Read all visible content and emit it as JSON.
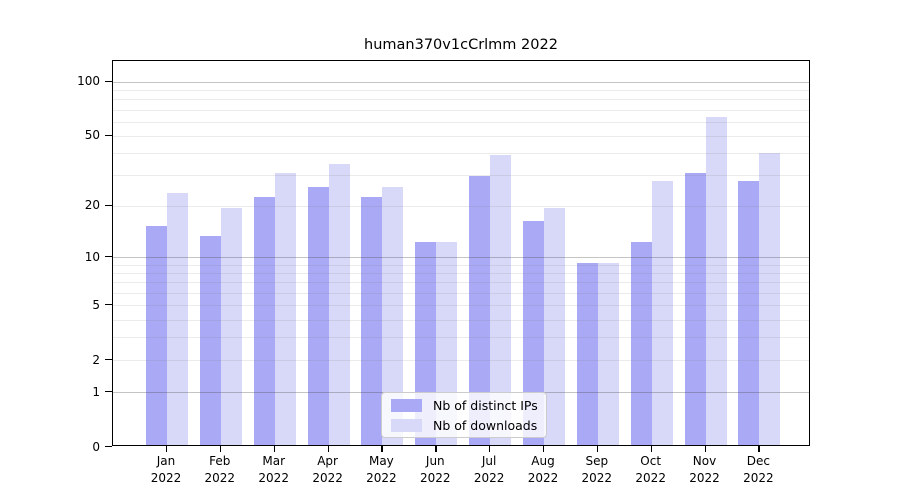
{
  "chart_data": {
    "type": "bar",
    "title": "human370v1cCrlmm 2022",
    "categories": [
      "Jan",
      "Feb",
      "Mar",
      "Apr",
      "May",
      "Jun",
      "Jul",
      "Aug",
      "Sep",
      "Oct",
      "Nov",
      "Dec"
    ],
    "x_year_label": "2022",
    "series": [
      {
        "name": "Nb of distinct IPs",
        "color": "#a9a9f5",
        "values": [
          15,
          13,
          22,
          25,
          22,
          12,
          29,
          16,
          9,
          12,
          30,
          27
        ]
      },
      {
        "name": "Nb of downloads",
        "color": "#d8d8f8",
        "values": [
          23,
          19,
          30,
          34,
          25,
          12,
          38,
          19,
          9,
          27,
          62,
          39
        ]
      }
    ],
    "yaxis": {
      "scale": "log1p",
      "ticks": [
        0,
        1,
        2,
        5,
        10,
        20,
        50,
        100
      ],
      "ylim": [
        0,
        130
      ],
      "major_gridlines": [
        1,
        10,
        100
      ],
      "minor_gridlines": [
        2,
        3,
        4,
        5,
        6,
        7,
        8,
        9,
        20,
        30,
        40,
        50,
        60,
        70,
        80,
        90
      ]
    },
    "legend": {
      "position": "lower center"
    },
    "colors": {
      "grid_major": "rgba(70,70,70,0.32)",
      "grid_minor": "rgba(130,130,130,0.16)",
      "spine": "#000000",
      "background": "#ffffff"
    }
  }
}
